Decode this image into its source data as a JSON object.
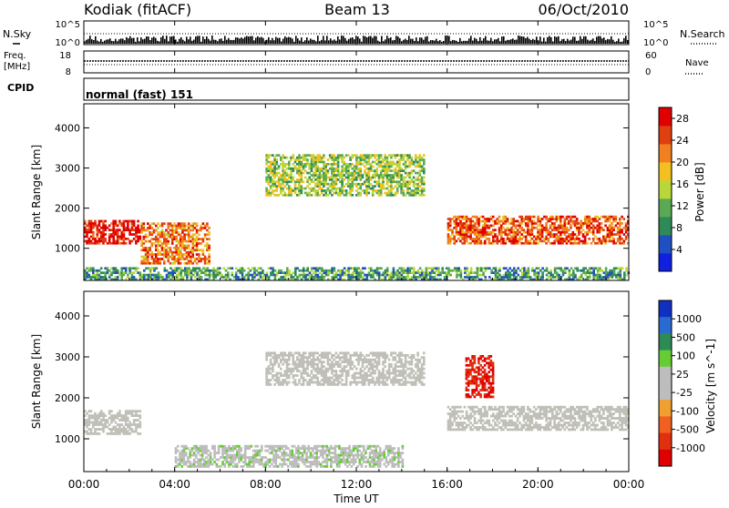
{
  "header": {
    "station": "Kodiak (fitACF)",
    "beam": "Beam 13",
    "date": "06/Oct/2010"
  },
  "top_strip": {
    "left_label": "N.Sky",
    "right_label": "N.Search",
    "tick_top": "10^5",
    "tick_bottom": "10^0"
  },
  "freq_strip": {
    "left_label_1": "Freq.",
    "left_label_2": "[MHz]",
    "tick_top": "18",
    "tick_bottom": "8",
    "right_tick_top": "60",
    "right_tick_bottom": "0",
    "right_label": "Nave"
  },
  "cpid": {
    "label": "CPID",
    "value": "normal (fast) 151"
  },
  "colors": {
    "power_scale": [
      "#1020e0",
      "#2050c0",
      "#2e8b57",
      "#5aaa55",
      "#b8d83a",
      "#f2c020",
      "#f08020",
      "#e04010",
      "#e00000"
    ],
    "velocity_scale": [
      "#1030c0",
      "#2a6bd0",
      "#2e8b57",
      "#66cc33",
      "#bdbdbd",
      "#bdbdbd",
      "#f0a030",
      "#f06020",
      "#e03010",
      "#e00000"
    ],
    "ground_scatter": "#c0c0b8"
  },
  "chart_data": [
    {
      "type": "heatmap",
      "title": "Power",
      "xlabel": "Time UT",
      "ylabel": "Slant Range [km]",
      "x_range_hours": [
        0,
        24
      ],
      "x_ticks": [
        "00:00",
        "04:00",
        "08:00",
        "12:00",
        "16:00",
        "20:00",
        "00:00"
      ],
      "ylim": [
        200,
        4600
      ],
      "y_ticks": [
        "1000",
        "2000",
        "3000",
        "4000"
      ],
      "colorbar": {
        "label": "Power [dB]",
        "ticks": [
          "4",
          "8",
          "12",
          "16",
          "20",
          "24",
          "28"
        ],
        "range": [
          0,
          30
        ]
      },
      "features": [
        {
          "name": "strong band",
          "t": [
            0.0,
            2.5
          ],
          "range_km": [
            1100,
            1700
          ],
          "power_db": 28
        },
        {
          "name": "descending band",
          "t": [
            2.5,
            5.5
          ],
          "range_km": [
            600,
            1600
          ],
          "power_db": 22
        },
        {
          "name": "upper patchy scatter",
          "t": [
            8.0,
            15.0
          ],
          "range_km": [
            2300,
            3300
          ],
          "power_db": 14
        },
        {
          "name": "lower band",
          "t": [
            16.0,
            24.0
          ],
          "range_km": [
            1100,
            1800
          ],
          "power_db": 24
        },
        {
          "name": "near-range noise",
          "t": [
            0,
            24
          ],
          "range_km": [
            200,
            500
          ],
          "power_db": 10
        }
      ]
    },
    {
      "type": "heatmap",
      "title": "Velocity",
      "xlabel": "Time UT",
      "ylabel": "Slant Range [km]",
      "x_range_hours": [
        0,
        24
      ],
      "x_ticks": [
        "00:00",
        "04:00",
        "08:00",
        "12:00",
        "16:00",
        "20:00",
        "00:00"
      ],
      "ylim": [
        200,
        4600
      ],
      "y_ticks": [
        "1000",
        "2000",
        "3000",
        "4000"
      ],
      "colorbar": {
        "label": "Velocity [m s^-1]",
        "ticks": [
          "1000",
          "500",
          "100",
          "25",
          "-25",
          "-100",
          "-500",
          "-1000"
        ],
        "range": [
          -1000,
          1000
        ]
      },
      "features": [
        {
          "name": "ground scatter band",
          "t": [
            0.0,
            2.5
          ],
          "range_km": [
            1100,
            1700
          ],
          "velocity": 0
        },
        {
          "name": "ground scatter upper",
          "t": [
            8.0,
            15.0
          ],
          "range_km": [
            2300,
            3100
          ],
          "velocity": 0
        },
        {
          "name": "ground scatter lower",
          "t": [
            16.0,
            24.0
          ],
          "range_km": [
            1200,
            1800
          ],
          "velocity": 0
        },
        {
          "name": "red streaks",
          "t": [
            16.8,
            18.0
          ],
          "range_km": [
            2000,
            3000
          ],
          "velocity": -800
        },
        {
          "name": "green near range",
          "t": [
            4.0,
            14.0
          ],
          "range_km": [
            300,
            800
          ],
          "velocity": 100
        }
      ]
    }
  ]
}
